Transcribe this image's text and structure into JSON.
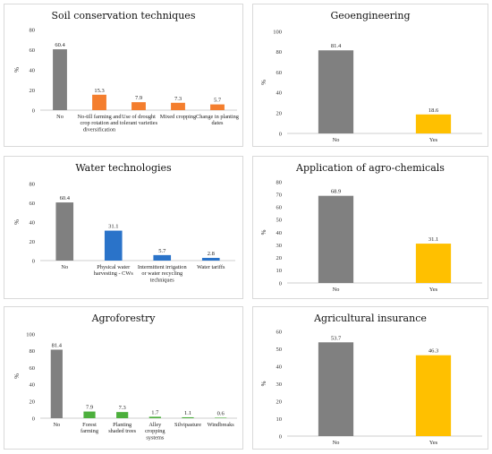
{
  "chart_data": [
    {
      "type": "bar",
      "title": "Soil conservation techniques",
      "ylabel": "%",
      "ylim": [
        0,
        80
      ],
      "yticks": [
        0,
        20,
        40,
        60,
        80
      ],
      "categories": [
        "No",
        "No-till farming and crop rotation and diversification",
        "Use of drought tolerant varieties",
        "Mixed cropping",
        "Change in planting dates"
      ],
      "values": [
        60.4,
        15.3,
        7.9,
        7.3,
        5.7
      ],
      "value_labels": [
        "60.4",
        "15.3",
        "7.9",
        "7.3",
        "5.7"
      ],
      "colors": [
        "#808080",
        "#F47E2E",
        "#F47E2E",
        "#F47E2E",
        "#F47E2E"
      ]
    },
    {
      "type": "bar",
      "title": "Geoengineering",
      "ylabel": "%",
      "ylim": [
        0,
        100
      ],
      "yticks": [
        0,
        20,
        40,
        60,
        80,
        100
      ],
      "categories": [
        "No",
        "Yes"
      ],
      "values": [
        81.4,
        18.6
      ],
      "value_labels": [
        "81.4",
        "18.6"
      ],
      "colors": [
        "#808080",
        "#FFC000"
      ]
    },
    {
      "type": "bar",
      "title": "Water technologies",
      "ylabel": "%",
      "ylim": [
        0,
        80
      ],
      "yticks": [
        0,
        20,
        40,
        60,
        80
      ],
      "categories": [
        "No",
        "Physical water harvesting - CWs",
        "Intermittent irrigation or water recycling techniques",
        "Water tariffs"
      ],
      "values": [
        60.4,
        31.1,
        5.7,
        2.8
      ],
      "value_labels": [
        "60.4",
        "31.1",
        "5.7",
        "2.8"
      ],
      "colors": [
        "#808080",
        "#2A73C9",
        "#2A73C9",
        "#2A73C9"
      ]
    },
    {
      "type": "bar",
      "title": "Application of agro-chemicals",
      "ylabel": "%",
      "ylim": [
        0,
        80
      ],
      "yticks": [
        0,
        10,
        20,
        30,
        40,
        50,
        60,
        70,
        80
      ],
      "categories": [
        "No",
        "Yes"
      ],
      "values": [
        68.9,
        31.1
      ],
      "value_labels": [
        "68.9",
        "31.1"
      ],
      "colors": [
        "#808080",
        "#FFC000"
      ]
    },
    {
      "type": "bar",
      "title": "Agroforestry",
      "ylabel": "%",
      "ylim": [
        0,
        100
      ],
      "yticks": [
        0,
        20,
        40,
        60,
        80,
        100
      ],
      "categories": [
        "No",
        "Forest farming",
        "Planting shaded trees",
        "Alley cropping systems",
        "Silvipasture",
        "Windbreaks"
      ],
      "values": [
        81.4,
        7.9,
        7.3,
        1.7,
        1.1,
        0.6
      ],
      "value_labels": [
        "81.4",
        "7.9",
        "7.3",
        "1.7",
        "1.1",
        "0.6"
      ],
      "colors": [
        "#808080",
        "#4CAF3C",
        "#4CAF3C",
        "#4CAF3C",
        "#4CAF3C",
        "#4CAF3C"
      ]
    },
    {
      "type": "bar",
      "title": "Agricultural insurance",
      "ylabel": "%",
      "ylim": [
        0,
        60
      ],
      "yticks": [
        0,
        10,
        20,
        30,
        40,
        50,
        60
      ],
      "categories": [
        "No",
        "Yes"
      ],
      "values": [
        53.7,
        46.3
      ],
      "value_labels": [
        "53.7",
        "46.3"
      ],
      "colors": [
        "#808080",
        "#FFC000"
      ]
    }
  ]
}
